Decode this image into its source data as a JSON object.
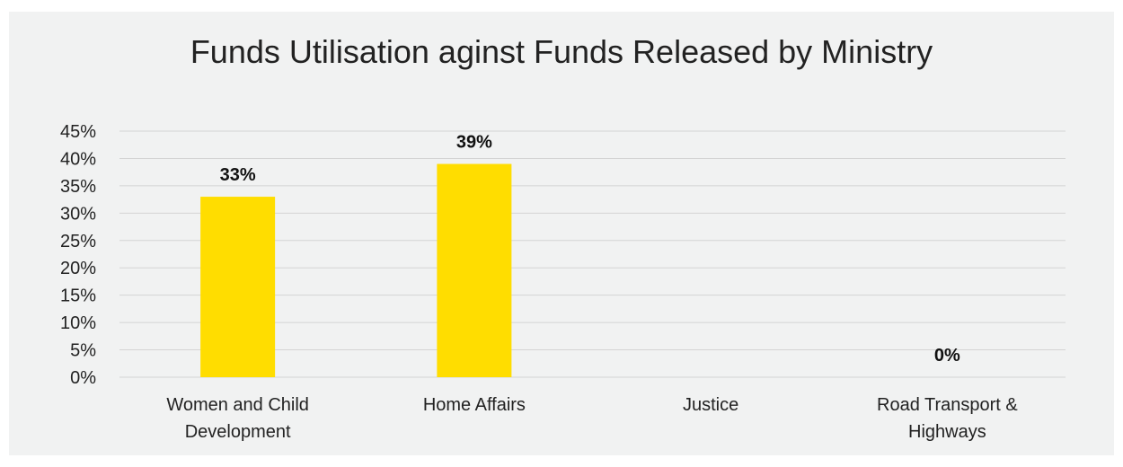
{
  "chart_data": {
    "type": "bar",
    "title": "Funds Utilisation aginst Funds Released by Ministry",
    "categories": [
      [
        "Women and Child",
        "Development"
      ],
      [
        "Home Affairs"
      ],
      [
        "Justice"
      ],
      [
        "Road Transport &",
        "Highways"
      ]
    ],
    "values": [
      33,
      39,
      null,
      0
    ],
    "data_labels": [
      "33%",
      "39%",
      "",
      "0%"
    ],
    "ylim": [
      0,
      45
    ],
    "yticks": [
      0,
      5,
      10,
      15,
      20,
      25,
      30,
      35,
      40,
      45
    ],
    "ytick_labels": [
      "0%",
      "5%",
      "10%",
      "15%",
      "20%",
      "25%",
      "30%",
      "35%",
      "40%",
      "45%"
    ],
    "grid": true,
    "legend": "none",
    "bar_color": "#FFDD00"
  }
}
